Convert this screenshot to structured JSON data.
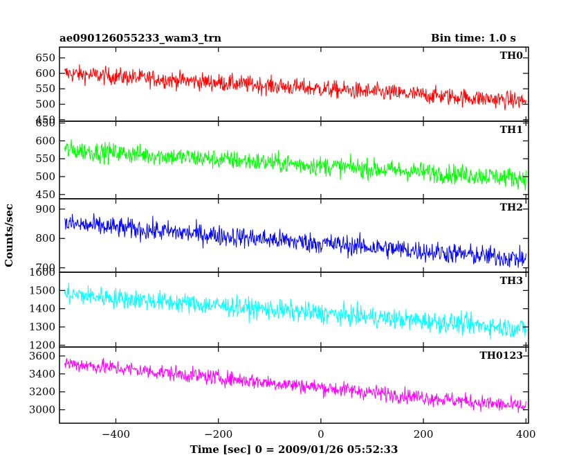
{
  "header": {
    "title": "ae090126055233_wam3_trn",
    "bin_time": "Bin time: 1.0 s"
  },
  "chart_data": {
    "type": "line",
    "title": "ae090126055233_wam3_trn",
    "xlabel": "Time [sec] 0 = 2009/01/26 05:52:33",
    "ylabel": "Counts/sec",
    "xlim": [
      -510,
      405
    ],
    "xticks": [
      -400,
      -200,
      0,
      200,
      400
    ],
    "x_start": -500,
    "x_end": 400,
    "x_step": 1,
    "panels": [
      {
        "name": "TH0",
        "color": "#ff0000",
        "ylim": [
          445,
          685
        ],
        "yticks": [
          450,
          500,
          550,
          600,
          650
        ],
        "trend_start": 600,
        "trend_end": 510,
        "noise": 28
      },
      {
        "name": "TH1",
        "color": "#00ff00",
        "ylim": [
          438,
          655
        ],
        "yticks": [
          450,
          500,
          550,
          600,
          650
        ],
        "trend_start": 575,
        "trend_end": 495,
        "noise": 27
      },
      {
        "name": "TH2",
        "color": "#0000ff",
        "ylim": [
          685,
          935
        ],
        "yticks": [
          700,
          800,
          900
        ],
        "trend_start": 850,
        "trend_end": 730,
        "noise": 35
      },
      {
        "name": "TH3",
        "color": "#00ffff",
        "ylim": [
          1190,
          1600
        ],
        "yticks": [
          1200,
          1300,
          1400,
          1500,
          1600
        ],
        "trend_start": 1480,
        "trend_end": 1290,
        "noise": 55
      },
      {
        "name": "TH0123",
        "color": "#ff00ff",
        "ylim": [
          2850,
          3700
        ],
        "yticks": [
          3000,
          3200,
          3400,
          3600
        ],
        "trend_start": 3520,
        "trend_end": 3030,
        "noise": 85
      }
    ]
  }
}
